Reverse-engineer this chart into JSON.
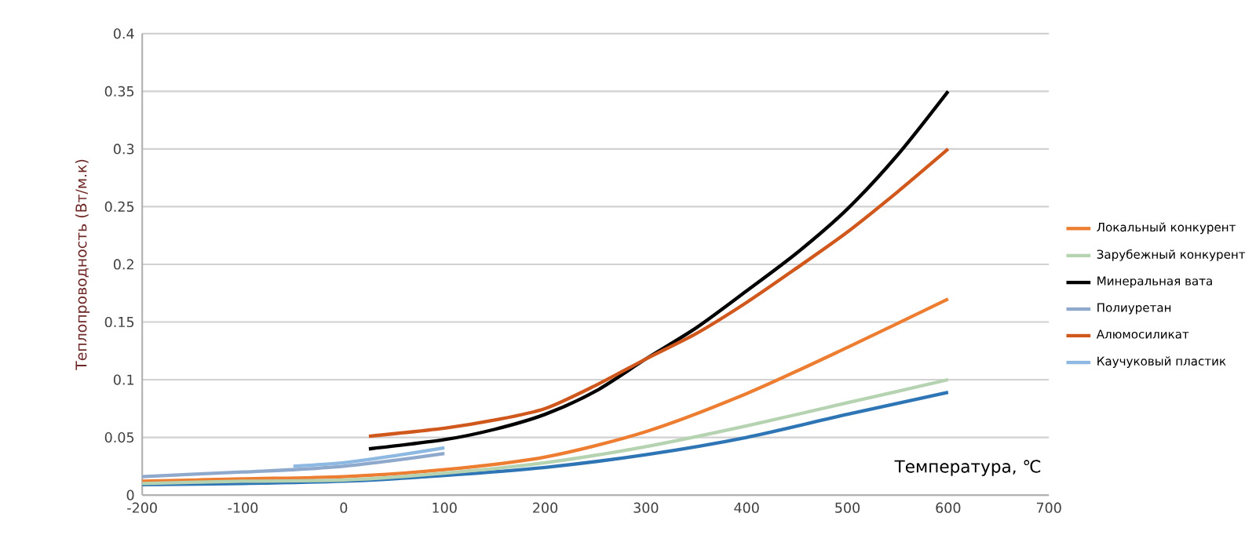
{
  "chart_data": {
    "type": "line",
    "xlabel": "Температура, ℃",
    "ylabel": "Теплопроводность (Вт/м.к)",
    "xlim": [
      -200,
      700
    ],
    "xticks": [
      -200,
      -100,
      0,
      100,
      200,
      300,
      400,
      500,
      600,
      700
    ],
    "ylim": [
      0,
      0.4
    ],
    "yticks": [
      0,
      0.05,
      0.1,
      0.15,
      0.2,
      0.25,
      0.3,
      0.35,
      0.4
    ],
    "grid": "y",
    "legend": "right",
    "marker": "none",
    "line_style": "solid",
    "series": [
      {
        "color": "#2e75b6",
        "x": [
          -200,
          -100,
          0,
          100,
          200,
          300,
          400,
          500,
          600
        ],
        "values": [
          0.009,
          0.01,
          0.012,
          0.017,
          0.024,
          0.035,
          0.05,
          0.07,
          0.089
        ]
      },
      {
        "name": "Локальный конкурент",
        "color": "#ed7d31",
        "x": [
          -200,
          -100,
          0,
          100,
          200,
          300,
          400,
          500,
          600
        ],
        "values": [
          0.012,
          0.014,
          0.016,
          0.022,
          0.033,
          0.055,
          0.088,
          0.128,
          0.17
        ]
      },
      {
        "name": "Зарубежный конкурент",
        "color": "#b5d3b0",
        "x": [
          -200,
          -100,
          0,
          100,
          200,
          300,
          400,
          500,
          600
        ],
        "values": [
          0.01,
          0.012,
          0.013,
          0.019,
          0.028,
          0.042,
          0.06,
          0.08,
          0.1
        ]
      },
      {
        "name": "Минеральная вата",
        "color": "#000000",
        "x": [
          25,
          100,
          150,
          200,
          250,
          300,
          350,
          400,
          450,
          500,
          550,
          600
        ],
        "values": [
          0.04,
          0.048,
          0.057,
          0.07,
          0.09,
          0.118,
          0.145,
          0.177,
          0.21,
          0.248,
          0.295,
          0.35
        ]
      },
      {
        "name": "Полиуретан",
        "color": "#8ea9cc",
        "x": [
          -200,
          -100,
          -50,
          0,
          50,
          100
        ],
        "values": [
          0.016,
          0.02,
          0.022,
          0.025,
          0.03,
          0.036
        ]
      },
      {
        "name": "Алюмосиликат",
        "color": "#d0581c",
        "x": [
          25,
          100,
          150,
          200,
          250,
          300,
          350,
          400,
          450,
          500,
          550,
          600
        ],
        "values": [
          0.051,
          0.058,
          0.065,
          0.075,
          0.095,
          0.118,
          0.14,
          0.167,
          0.197,
          0.228,
          0.263,
          0.3
        ]
      },
      {
        "name": "Каучуковый пластик",
        "color": "#8cb8e2",
        "x": [
          -50,
          0,
          50,
          100
        ],
        "values": [
          0.025,
          0.028,
          0.034,
          0.041
        ]
      }
    ]
  }
}
